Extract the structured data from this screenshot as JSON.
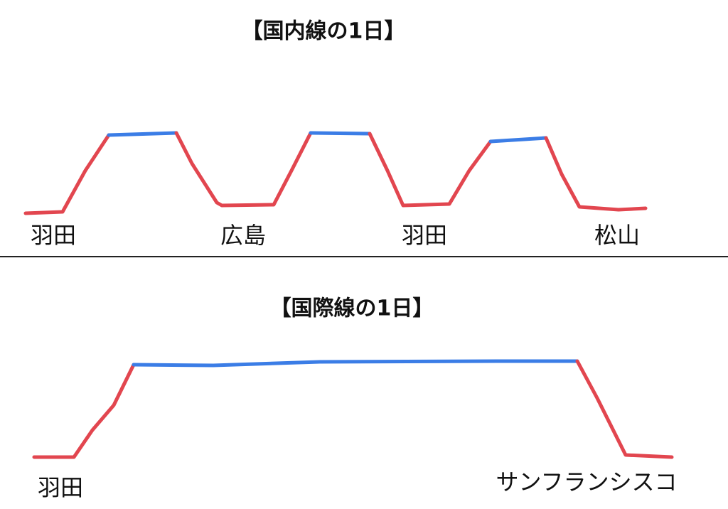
{
  "domestic": {
    "title": "【国内線の1日】",
    "airports": [
      "羽田",
      "広島",
      "羽田",
      "松山"
    ]
  },
  "international": {
    "title": "【国際線の1日】",
    "airports": [
      "羽田",
      "サンフランシスコ"
    ]
  }
}
